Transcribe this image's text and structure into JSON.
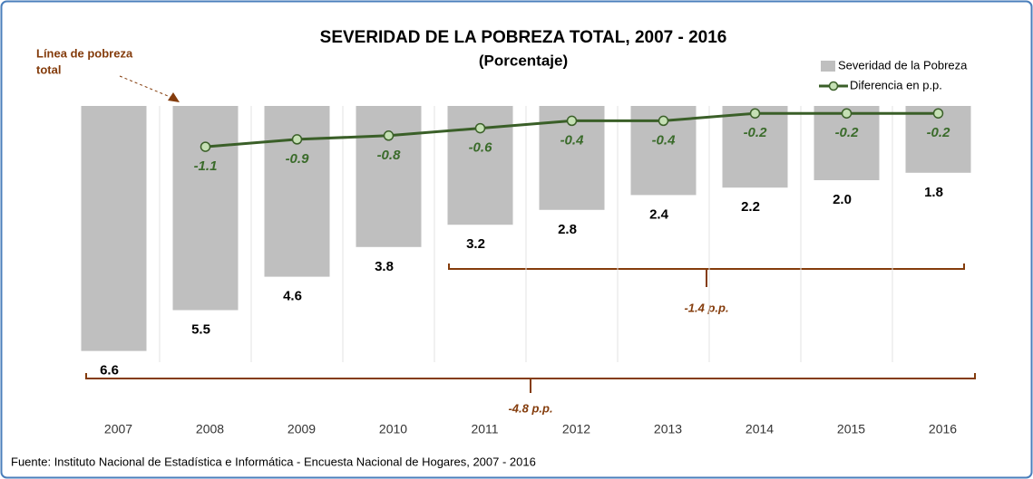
{
  "chart_data": {
    "type": "bar-line",
    "title": "SEVERIDAD DE LA POBREZA TOTAL, 2007 - 2016",
    "subtitle": "(Porcentaje)",
    "categories": [
      "2007",
      "2008",
      "2009",
      "2010",
      "2011",
      "2012",
      "2013",
      "2014",
      "2015",
      "2016"
    ],
    "series": [
      {
        "name": "Severidad de la Pobreza",
        "type": "bar",
        "color": "#bfbfbf",
        "values": [
          6.6,
          5.5,
          4.6,
          3.8,
          3.2,
          2.8,
          2.4,
          2.2,
          2.0,
          1.8
        ],
        "value_labels": [
          "6.6",
          "5.5",
          "4.6",
          "3.8",
          "3.2",
          "2.8",
          "2.4",
          "2.2",
          "2.0",
          "1.8"
        ]
      },
      {
        "name": "Diferencia en p.p.",
        "type": "line",
        "axis": "y2",
        "color": "#3a5f28",
        "values": [
          null,
          -1.1,
          -0.9,
          -0.8,
          -0.6,
          -0.4,
          -0.4,
          -0.2,
          -0.2,
          -0.2
        ]
      }
    ],
    "ylim": [
      0,
      7
    ],
    "y2lim": [
      0,
      -7
    ],
    "inverted": true,
    "note": [
      "Línea de pobreza",
      "total"
    ],
    "annotations": [
      "-1.4 p.p.",
      "-4.8 p.p."
    ],
    "source": "Fuente: Instituto Nacional de Estadística e Informática - Encuesta Nacional de Hogares, 2007 - 2016"
  }
}
